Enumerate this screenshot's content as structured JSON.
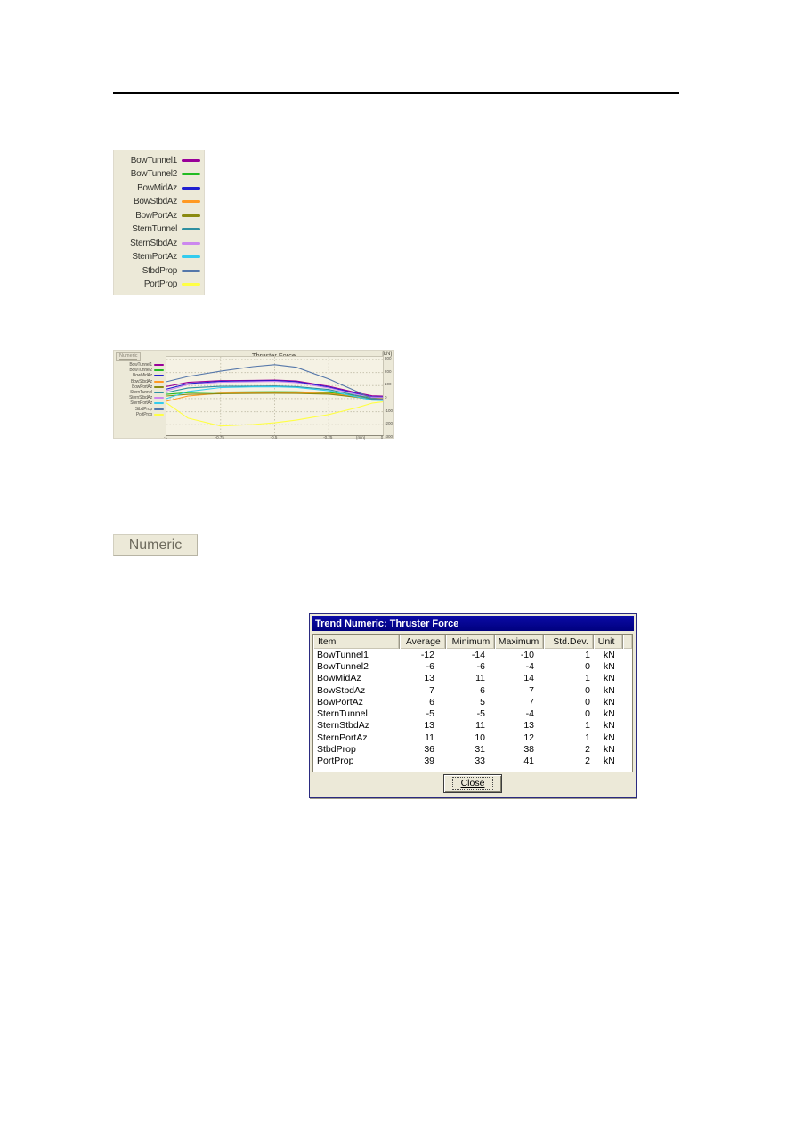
{
  "legend_panel": {
    "items": [
      {
        "label": "BowTunnel1",
        "color": "#990099"
      },
      {
        "label": "BowTunnel2",
        "color": "#22bb22"
      },
      {
        "label": "BowMidAz",
        "color": "#2020d0"
      },
      {
        "label": "BowStbdAz",
        "color": "#ff9922"
      },
      {
        "label": "BowPortAz",
        "color": "#8a8a10"
      },
      {
        "label": "SternTunnel",
        "color": "#2e8fa0"
      },
      {
        "label": "SternStbdAz",
        "color": "#cc88ee"
      },
      {
        "label": "SternPortAz",
        "color": "#33ccee"
      },
      {
        "label": "StbdProp",
        "color": "#5577aa"
      },
      {
        "label": "PortProp",
        "color": "#ffff44"
      }
    ]
  },
  "trend_chart": {
    "numeric_button_label": "Numeric"
  },
  "chart_data": {
    "type": "line",
    "title": "Thruster Force",
    "ylabel": "[kN]",
    "xlabel": "(min)",
    "xlim": [
      -1,
      0
    ],
    "ylim": [
      -280,
      320
    ],
    "x_ticks": [
      -1,
      -0.75,
      -0.5,
      -0.25,
      0
    ],
    "y_ticks": [
      300,
      200,
      100,
      0,
      -100,
      -200,
      -300
    ],
    "grid": true,
    "legend_position": "left",
    "x": [
      -1,
      -0.9,
      -0.75,
      -0.6,
      -0.5,
      -0.4,
      -0.25,
      -0.12,
      -0.05,
      0
    ],
    "series": [
      {
        "name": "BowTunnel1",
        "color": "#990099",
        "values": [
          93,
          125,
          138,
          140,
          143,
          135,
          95,
          45,
          22,
          20
        ]
      },
      {
        "name": "BowTunnel2",
        "color": "#22bb22",
        "values": [
          33,
          46,
          50,
          52,
          53,
          52,
          46,
          24,
          8,
          5
        ]
      },
      {
        "name": "BowMidAz",
        "color": "#2020d0",
        "values": [
          73,
          115,
          132,
          136,
          138,
          130,
          88,
          38,
          14,
          12
        ]
      },
      {
        "name": "BowStbdAz",
        "color": "#ff9922",
        "values": [
          -20,
          20,
          42,
          45,
          46,
          45,
          40,
          16,
          0,
          -2
        ]
      },
      {
        "name": "BowPortAz",
        "color": "#8a8a10",
        "values": [
          20,
          33,
          38,
          40,
          41,
          40,
          34,
          10,
          -8,
          -12
        ]
      },
      {
        "name": "SternTunnel",
        "color": "#2e8fa0",
        "values": [
          47,
          82,
          94,
          96,
          97,
          92,
          70,
          24,
          -4,
          -8
        ]
      },
      {
        "name": "SternStbdAz",
        "color": "#cc88ee",
        "values": [
          60,
          108,
          126,
          130,
          132,
          123,
          82,
          32,
          10,
          8
        ]
      },
      {
        "name": "SternPortAz",
        "color": "#33ccee",
        "values": [
          0,
          55,
          85,
          90,
          91,
          86,
          60,
          14,
          -12,
          -15
        ]
      },
      {
        "name": "StbdProp",
        "color": "#5577aa",
        "values": [
          130,
          170,
          210,
          245,
          260,
          240,
          150,
          55,
          0,
          -5
        ]
      },
      {
        "name": "PortProp",
        "color": "#ffff44",
        "values": [
          -33,
          -150,
          -210,
          -198,
          -185,
          -165,
          -122,
          -70,
          -35,
          -25
        ]
      }
    ]
  },
  "numeric_button": {
    "label": "Numeric"
  },
  "dialog": {
    "title": "Trend Numeric: Thruster Force",
    "columns": [
      "Item",
      "Average",
      "Minimum",
      "Maximum",
      "Std.Dev.",
      "Unit"
    ],
    "rows": [
      [
        "BowTunnel1",
        "-12",
        "-14",
        "-10",
        "1",
        "kN"
      ],
      [
        "BowTunnel2",
        "-6",
        "-6",
        "-4",
        "0",
        "kN"
      ],
      [
        "BowMidAz",
        "13",
        "11",
        "14",
        "1",
        "kN"
      ],
      [
        "BowStbdAz",
        "7",
        "6",
        "7",
        "0",
        "kN"
      ],
      [
        "BowPortAz",
        "6",
        "5",
        "7",
        "0",
        "kN"
      ],
      [
        "SternTunnel",
        "-5",
        "-5",
        "-4",
        "0",
        "kN"
      ],
      [
        "SternStbdAz",
        "13",
        "11",
        "13",
        "1",
        "kN"
      ],
      [
        "SternPortAz",
        "11",
        "10",
        "12",
        "1",
        "kN"
      ],
      [
        "StbdProp",
        "36",
        "31",
        "38",
        "2",
        "kN"
      ],
      [
        "PortProp",
        "39",
        "33",
        "41",
        "2",
        "kN"
      ]
    ],
    "close_label": "Close"
  }
}
